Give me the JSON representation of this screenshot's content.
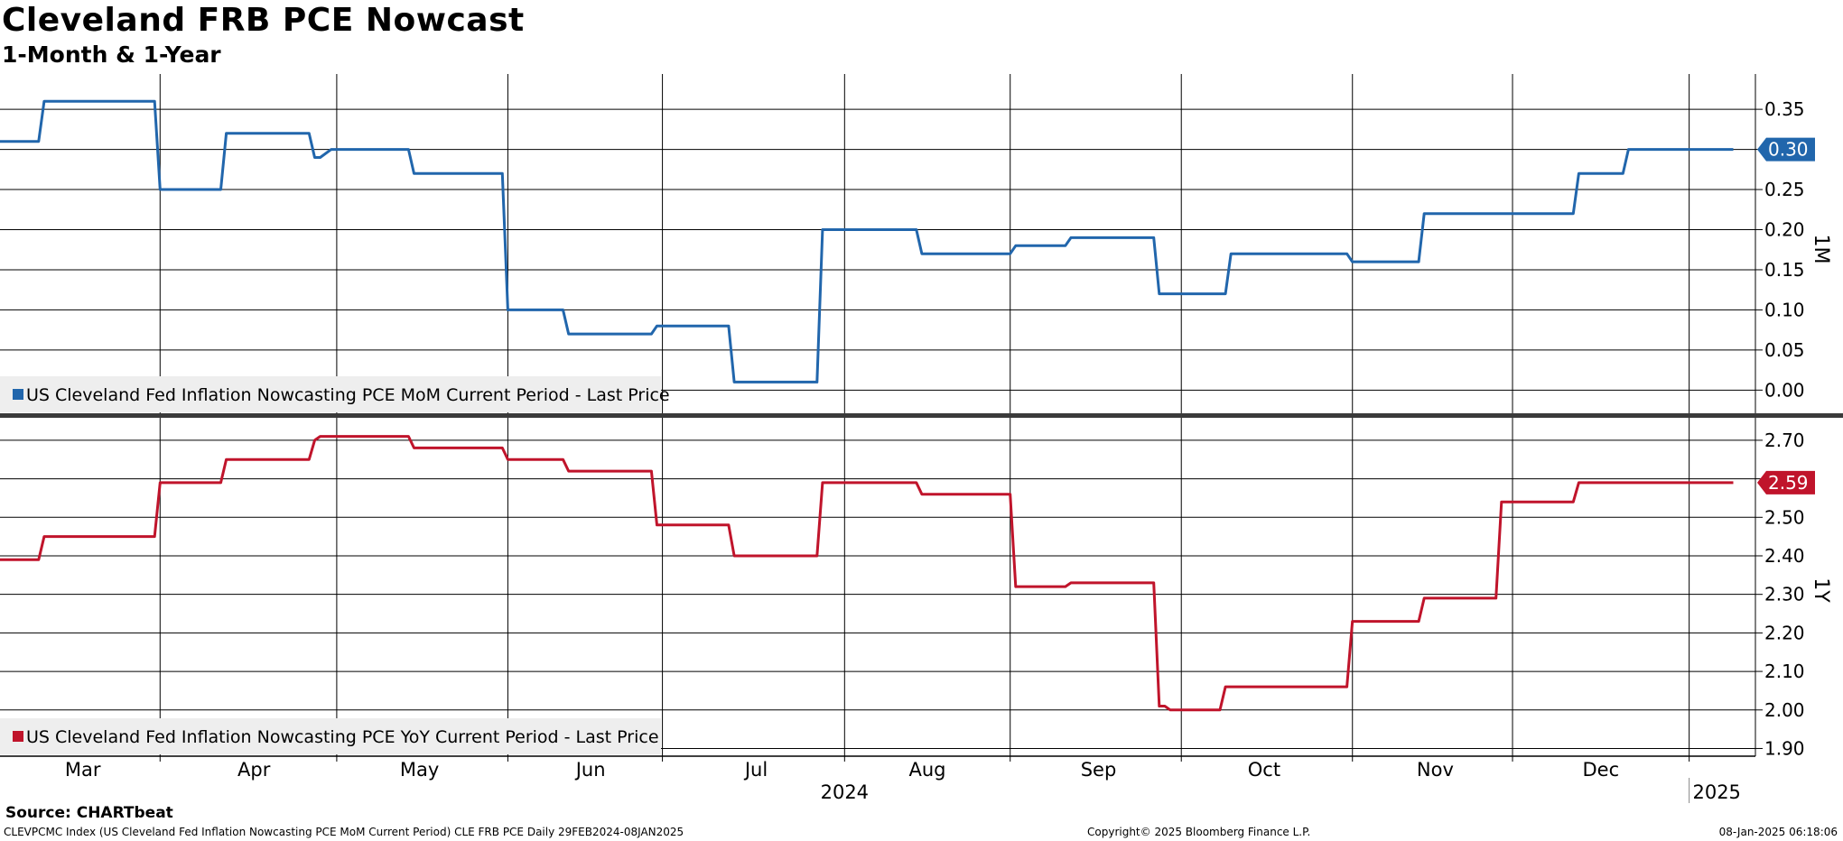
{
  "header": {
    "title": "Cleveland FRB PCE Nowcast",
    "subtitle": "1-Month & 1-Year"
  },
  "footer": {
    "source": "Source: CHARTbeat",
    "ticker_info": "CLEVPCMC Index (US Cleveland Fed Inflation Nowcasting PCE MoM Current Period) CLE FRB PCE  Daily 29FEB2024-08JAN2025",
    "copyright": "Copyright© 2025 Bloomberg Finance L.P.",
    "timestamp": "08-Jan-2025 06:18:06"
  },
  "colors": {
    "mom_series": "#2166ac",
    "yoy_series": "#c0142b",
    "grid": "#000000",
    "legend_bg": "#eeeeee"
  },
  "chart_data": [
    {
      "type": "line",
      "axis_label": "1M",
      "legend": "US Cleveland Fed Inflation Nowcasting PCE MoM Current Period - Last Price",
      "last_price_label": "0.30",
      "ylim": [
        -0.03,
        0.394
      ],
      "yticks": [
        0.0,
        0.05,
        0.1,
        0.15,
        0.2,
        0.25,
        0.3,
        0.35
      ],
      "ytick_labels": [
        "0.00",
        "0.05",
        "0.10",
        "0.15",
        "0.20",
        "0.25",
        "0.30",
        "0.35"
      ],
      "series": [
        {
          "name": "US Cleveland Fed Inflation Nowcasting PCE MoM Current Period - Last Price",
          "color": "#2166ac",
          "x": [
            "2024-02-29",
            "2024-03-07",
            "2024-03-08",
            "2024-03-28",
            "2024-03-29",
            "2024-04-09",
            "2024-04-10",
            "2024-04-25",
            "2024-04-26",
            "2024-04-27",
            "2024-04-29",
            "2024-04-30",
            "2024-05-13",
            "2024-05-14",
            "2024-05-30",
            "2024-05-31",
            "2024-06-10",
            "2024-06-11",
            "2024-06-26",
            "2024-06-27",
            "2024-07-10",
            "2024-07-11",
            "2024-07-26",
            "2024-07-27",
            "2024-08-13",
            "2024-08-14",
            "2024-08-30",
            "2024-08-31",
            "2024-09-09",
            "2024-09-10",
            "2024-09-25",
            "2024-09-26",
            "2024-10-08",
            "2024-10-09",
            "2024-10-30",
            "2024-10-31",
            "2024-11-12",
            "2024-11-13",
            "2024-12-10",
            "2024-12-11",
            "2024-12-19",
            "2024-12-20",
            "2025-01-08"
          ],
          "y": [
            0.31,
            0.31,
            0.36,
            0.36,
            0.25,
            0.25,
            0.32,
            0.32,
            0.29,
            0.29,
            0.3,
            0.3,
            0.3,
            0.27,
            0.27,
            0.1,
            0.1,
            0.07,
            0.07,
            0.08,
            0.08,
            0.01,
            0.01,
            0.2,
            0.2,
            0.17,
            0.17,
            0.18,
            0.18,
            0.19,
            0.19,
            0.12,
            0.12,
            0.17,
            0.17,
            0.16,
            0.16,
            0.22,
            0.22,
            0.27,
            0.27,
            0.3,
            0.3
          ]
        }
      ]
    },
    {
      "type": "line",
      "axis_label": "1Y",
      "legend": "US Cleveland Fed Inflation Nowcasting PCE YoY Current Period - Last Price",
      "last_price_label": "2.59",
      "ylim": [
        1.88,
        2.763
      ],
      "yticks": [
        1.9,
        2.0,
        2.1,
        2.2,
        2.3,
        2.4,
        2.5,
        2.6,
        2.7
      ],
      "ytick_labels": [
        "1.90",
        "2.00",
        "2.10",
        "2.20",
        "2.30",
        "2.40",
        "2.50",
        "2.60",
        "2.70"
      ],
      "series": [
        {
          "name": "US Cleveland Fed Inflation Nowcasting PCE YoY Current Period - Last Price",
          "color": "#c0142b",
          "x": [
            "2024-02-29",
            "2024-03-07",
            "2024-03-08",
            "2024-03-28",
            "2024-03-29",
            "2024-04-09",
            "2024-04-10",
            "2024-04-25",
            "2024-04-26",
            "2024-04-27",
            "2024-04-29",
            "2024-05-13",
            "2024-05-14",
            "2024-05-30",
            "2024-05-31",
            "2024-06-10",
            "2024-06-11",
            "2024-06-26",
            "2024-06-27",
            "2024-07-10",
            "2024-07-11",
            "2024-07-26",
            "2024-07-27",
            "2024-08-13",
            "2024-08-14",
            "2024-08-30",
            "2024-08-31",
            "2024-09-09",
            "2024-09-10",
            "2024-09-25",
            "2024-09-26",
            "2024-09-27",
            "2024-09-28",
            "2024-10-07",
            "2024-10-08",
            "2024-10-30",
            "2024-10-31",
            "2024-11-12",
            "2024-11-13",
            "2024-11-26",
            "2024-11-27",
            "2024-12-10",
            "2024-12-11",
            "2025-01-08"
          ],
          "y": [
            2.39,
            2.39,
            2.45,
            2.45,
            2.59,
            2.59,
            2.65,
            2.65,
            2.7,
            2.71,
            2.71,
            2.71,
            2.68,
            2.68,
            2.65,
            2.65,
            2.62,
            2.62,
            2.48,
            2.48,
            2.4,
            2.4,
            2.59,
            2.59,
            2.56,
            2.56,
            2.32,
            2.32,
            2.33,
            2.33,
            2.01,
            2.01,
            2.0,
            2.0,
            2.06,
            2.06,
            2.23,
            2.23,
            2.29,
            2.29,
            2.54,
            2.54,
            2.59,
            2.59
          ]
        }
      ]
    }
  ],
  "x_axis": {
    "xlim": [
      "2024-02-29",
      "2025-01-12"
    ],
    "month_labels": [
      {
        "date": "2024-03-15",
        "label": "Mar"
      },
      {
        "date": "2024-04-15",
        "label": "Apr"
      },
      {
        "date": "2024-05-15",
        "label": "May"
      },
      {
        "date": "2024-06-15",
        "label": "Jun"
      },
      {
        "date": "2024-07-15",
        "label": "Jul"
      },
      {
        "date": "2024-08-15",
        "label": "Aug"
      },
      {
        "date": "2024-09-15",
        "label": "Sep"
      },
      {
        "date": "2024-10-15",
        "label": "Oct"
      },
      {
        "date": "2024-11-15",
        "label": "Nov"
      },
      {
        "date": "2024-12-15",
        "label": "Dec"
      }
    ],
    "gridline_dates": [
      "2024-03-29",
      "2024-04-30",
      "2024-05-31",
      "2024-06-28",
      "2024-07-31",
      "2024-08-30",
      "2024-09-30",
      "2024-10-31",
      "2024-11-29",
      "2024-12-31"
    ],
    "year_labels": [
      {
        "date": "2024-07-31",
        "label": "2024"
      },
      {
        "date": "2025-01-05",
        "label": "2025"
      }
    ],
    "year_divider_date": "2024-12-31"
  }
}
